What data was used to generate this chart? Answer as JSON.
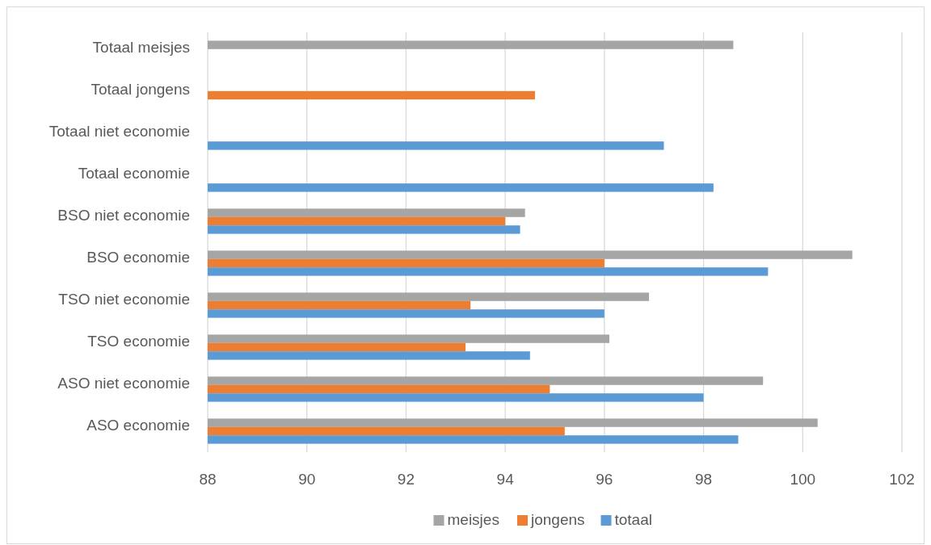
{
  "chart_data": {
    "type": "bar",
    "orientation": "horizontal",
    "categories": [
      "Totaal meisjes",
      "Totaal jongens",
      "Totaal niet economie",
      "Totaal economie",
      "BSO niet economie",
      "BSO economie",
      "TSO niet economie",
      "TSO economie",
      "ASO niet economie",
      "ASO economie"
    ],
    "series": [
      {
        "name": "meisjes",
        "color": "#a5a5a5",
        "values": [
          98.6,
          null,
          null,
          null,
          94.4,
          101.0,
          96.9,
          96.1,
          99.2,
          100.3
        ]
      },
      {
        "name": "jongens",
        "color": "#ed7d31",
        "values": [
          null,
          94.6,
          null,
          null,
          94.0,
          96.0,
          93.3,
          93.2,
          94.9,
          95.2
        ]
      },
      {
        "name": "totaal",
        "color": "#5b9bd5",
        "values": [
          null,
          null,
          97.2,
          98.2,
          94.3,
          99.3,
          96.0,
          94.5,
          98.0,
          98.7
        ]
      }
    ],
    "xlim": [
      88,
      102
    ],
    "xticks": [
      88,
      90,
      92,
      94,
      96,
      98,
      100,
      102
    ],
    "grid": "x",
    "legend": "bottom"
  }
}
